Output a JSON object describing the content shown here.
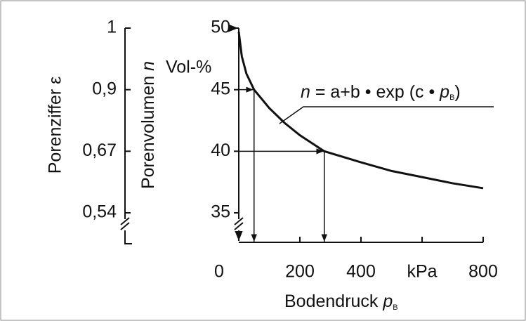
{
  "chart_data": {
    "type": "line",
    "x": [
      0,
      10,
      25,
      50,
      100,
      150,
      200,
      280,
      400,
      500,
      600,
      700,
      800
    ],
    "values": [
      49.7,
      47.7,
      46.3,
      45,
      43.5,
      42.3,
      41.3,
      40,
      39.1,
      38.4,
      37.9,
      37.4,
      37
    ],
    "color": "#111111",
    "xlim": [
      0,
      800
    ],
    "xticks": [
      0,
      200,
      400,
      {
        "value": 600,
        "label": "kPa"
      },
      800
    ],
    "ylim": [
      35,
      50
    ],
    "yticks": [
      35,
      40,
      45,
      50
    ],
    "y2ticks": [
      {
        "value": 0.54,
        "label": "0,54"
      },
      {
        "value": 0.67,
        "label": "0,67"
      },
      {
        "value": 0.9,
        "label": "0,9"
      },
      1
    ],
    "readings": [
      {
        "x": 50,
        "y": 45
      },
      {
        "x": 280,
        "y": 40
      }
    ],
    "x_label": {
      "text": "Bodendruck ",
      "var": "p",
      "sub": "B"
    },
    "y_label": {
      "text": "Porenvolumen ",
      "var": "n"
    },
    "y_unit": "Vol-%",
    "y2_label": "Porenziffer ε",
    "equation": {
      "lhs": "n",
      "rhs": " = a+b • exp (c • ",
      "var": "p",
      "sub": "B",
      "close": ")"
    }
  }
}
